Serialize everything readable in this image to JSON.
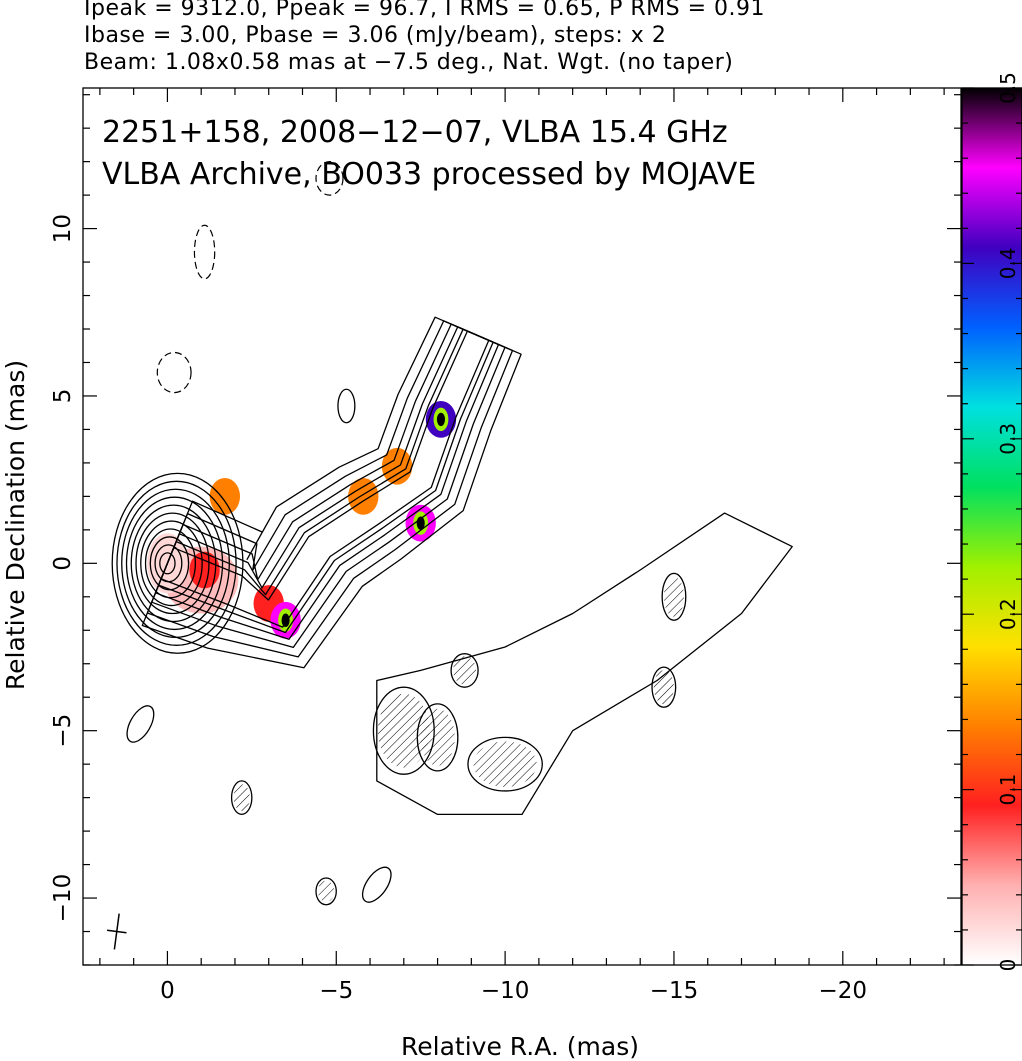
{
  "header": {
    "line1": "Ipeak = 9312.0, Ppeak = 96.7, I RMS = 0.65, P RMS = 0.91",
    "line2": "Ibase = 3.00, Pbase = 3.06 (mJy/beam), steps: x 2",
    "line3": "Beam: 1.08x0.58 mas at −7.5 deg., Nat. Wgt. (no taper)"
  },
  "chart_data": {
    "type": "heatmap",
    "title_line1": "2251+158, 2008−12−07, VLBA 15.4 GHz",
    "title_line2": "VLBA Archive, BO033 processed by MOJAVE",
    "xlabel": "Relative R.A. (mas)",
    "ylabel": "Relative Declination (mas)",
    "xlim": [
      2.5,
      -23.5
    ],
    "ylim": [
      -12,
      14.2
    ],
    "xticks": [
      0,
      -5,
      -10,
      -15,
      -20
    ],
    "xtick_labels": [
      "0",
      "−5",
      "−10",
      "−15",
      "−20"
    ],
    "yticks": [
      -10,
      -5,
      0,
      5,
      10
    ],
    "ytick_labels": [
      "−10",
      "−5",
      "0",
      "5",
      "10"
    ],
    "colorbar": {
      "range": [
        0,
        0.5
      ],
      "ticks": [
        0,
        0.1,
        0.2,
        0.3,
        0.4,
        0.5
      ],
      "tick_labels": [
        "0",
        "0.1",
        "0.2",
        "0.3",
        "0.4",
        "0.5"
      ],
      "colors": [
        "#ffffff",
        "#ffb0b0",
        "#ff2020",
        "#ff8000",
        "#ffe000",
        "#a0f000",
        "#00e060",
        "#00e0e0",
        "#0060ff",
        "#4000c0",
        "#ff00ff",
        "#000000"
      ]
    },
    "core": {
      "x": 0.0,
      "y": 0.0,
      "n_contours": 11
    },
    "jet_ridge": [
      [
        0,
        0
      ],
      [
        -2,
        -0.8
      ],
      [
        -3.2,
        -1.5
      ],
      [
        -4.5,
        0.5
      ],
      [
        -6,
        1.5
      ],
      [
        -7.5,
        2.5
      ],
      [
        -8.2,
        4.5
      ],
      [
        -9.2,
        6.8
      ]
    ],
    "polarization_patches": [
      {
        "x": -1.7,
        "y": 2.0,
        "fraction": 0.15
      },
      {
        "x": -1.1,
        "y": -0.2,
        "fraction": 0.08
      },
      {
        "x": -3.0,
        "y": -1.2,
        "fraction": 0.1
      },
      {
        "x": -3.5,
        "y": -1.7,
        "fraction": 0.45
      },
      {
        "x": -6.8,
        "y": 2.9,
        "fraction": 0.15
      },
      {
        "x": -7.5,
        "y": 1.2,
        "fraction": 0.45
      },
      {
        "x": -8.1,
        "y": 4.3,
        "fraction": 0.42
      },
      {
        "x": -5.8,
        "y": 2.0,
        "fraction": 0.12
      }
    ],
    "beam": {
      "major_mas": 1.08,
      "minor_mas": 0.58,
      "pa_deg": -7.5,
      "x": 1.5,
      "y": -11.0
    }
  }
}
